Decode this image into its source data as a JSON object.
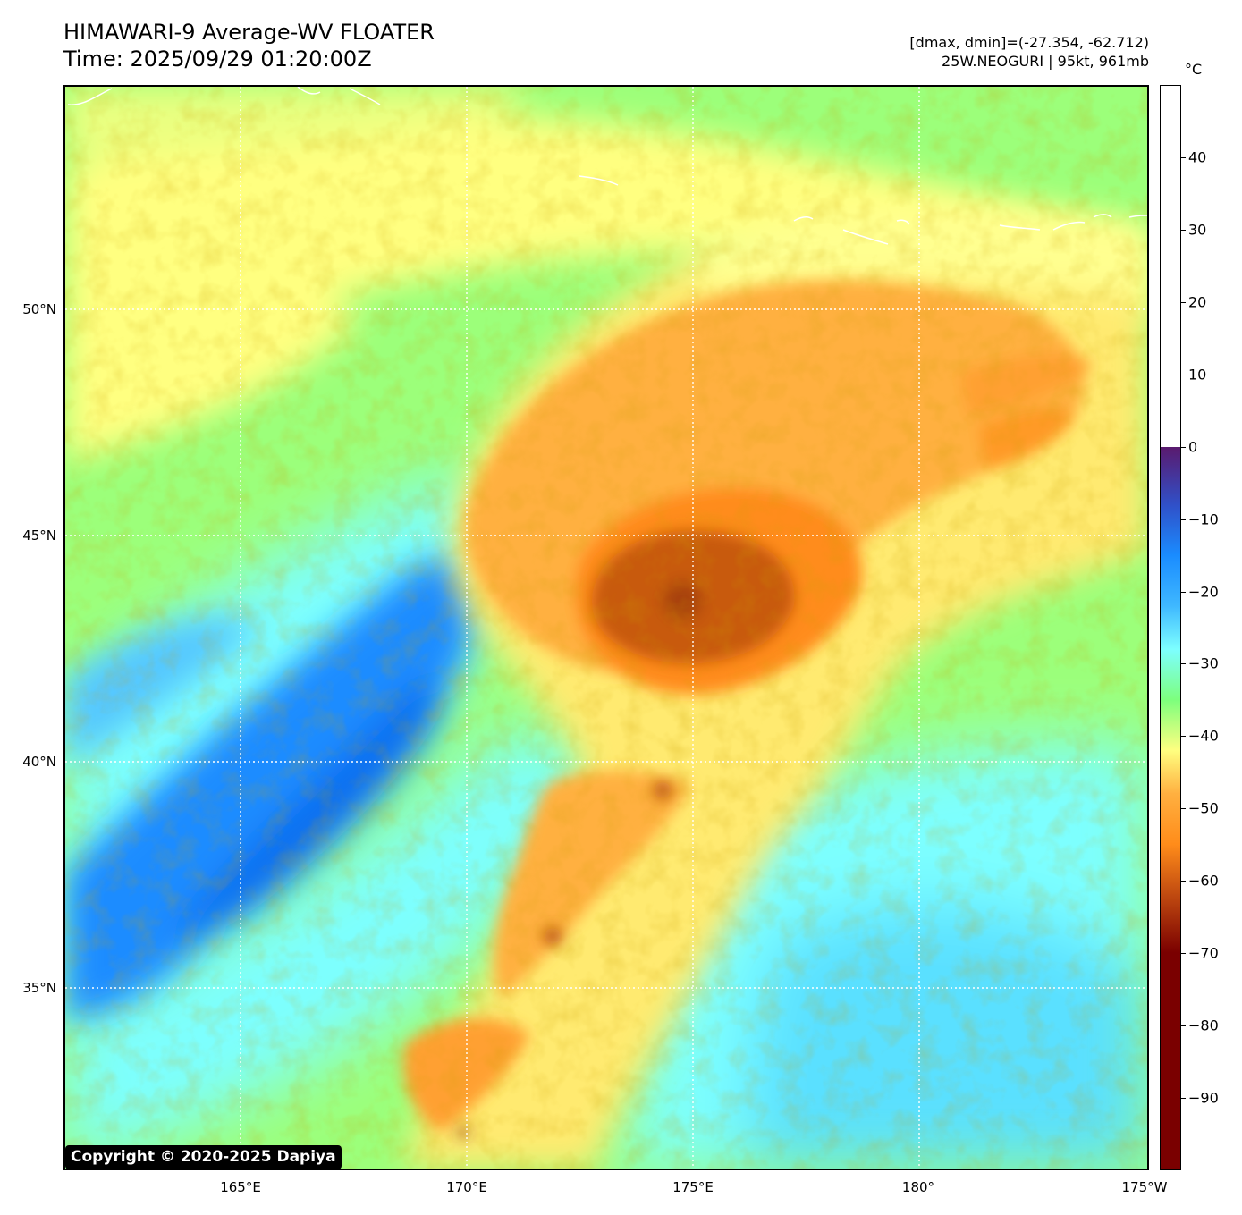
{
  "header": {
    "title_line1": "HIMAWARI-9 Average-WV FLOATER",
    "title_line2": "Time: 2025/09/29 01:20:00Z",
    "info_line1": "[dmax, dmin]=(-27.354, -62.712)",
    "info_line2": "25W.NEOGURI | 95kt, 961mb"
  },
  "map": {
    "lat_labels": [
      "50°N",
      "45°N",
      "40°N",
      "35°N"
    ],
    "lon_labels": [
      "165°E",
      "170°E",
      "175°E",
      "180°",
      "175°W"
    ],
    "gridlines": "dotted white",
    "coastline_color": "#ffffff",
    "storm_name": "25W.NEOGURI"
  },
  "copyright": "Copyright © 2020-2025 Dapiya",
  "colorbar": {
    "unit": "°C",
    "tick_labels": [
      "40",
      "30",
      "20",
      "10",
      "0",
      "−10",
      "−20",
      "−30",
      "−40",
      "−50",
      "−60",
      "−70",
      "−80",
      "−90"
    ],
    "range": [
      -100,
      50
    ],
    "colors": {
      "white_above_zero": "#ffffff",
      "purple_at_zero": "#5a1a6e",
      "blue": "#1a8cff",
      "cyan": "#7dffff",
      "green": "#7dff7d",
      "yellow": "#ffff80",
      "orange": "#ff8c1a",
      "dark_red": "#7a0000"
    }
  }
}
